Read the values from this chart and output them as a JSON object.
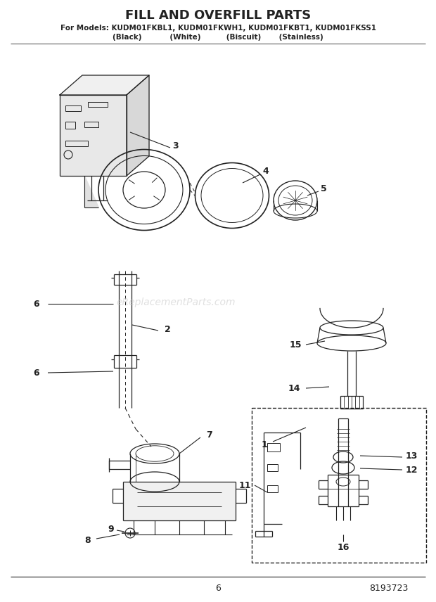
{
  "title": "FILL AND OVERFILL PARTS",
  "subtitle1": "For Models: KUDM01FKBL1, KUDM01FKWH1, KUDM01FKBT1, KUDM01FKSS1",
  "subtitle2": "(Black)           (White)          (Biscuit)       (Stainless)",
  "page_number": "6",
  "part_number": "8193723",
  "watermark": "eReplacementParts.com",
  "bg": "#ffffff",
  "lc": "#222222",
  "gray": "#888888"
}
